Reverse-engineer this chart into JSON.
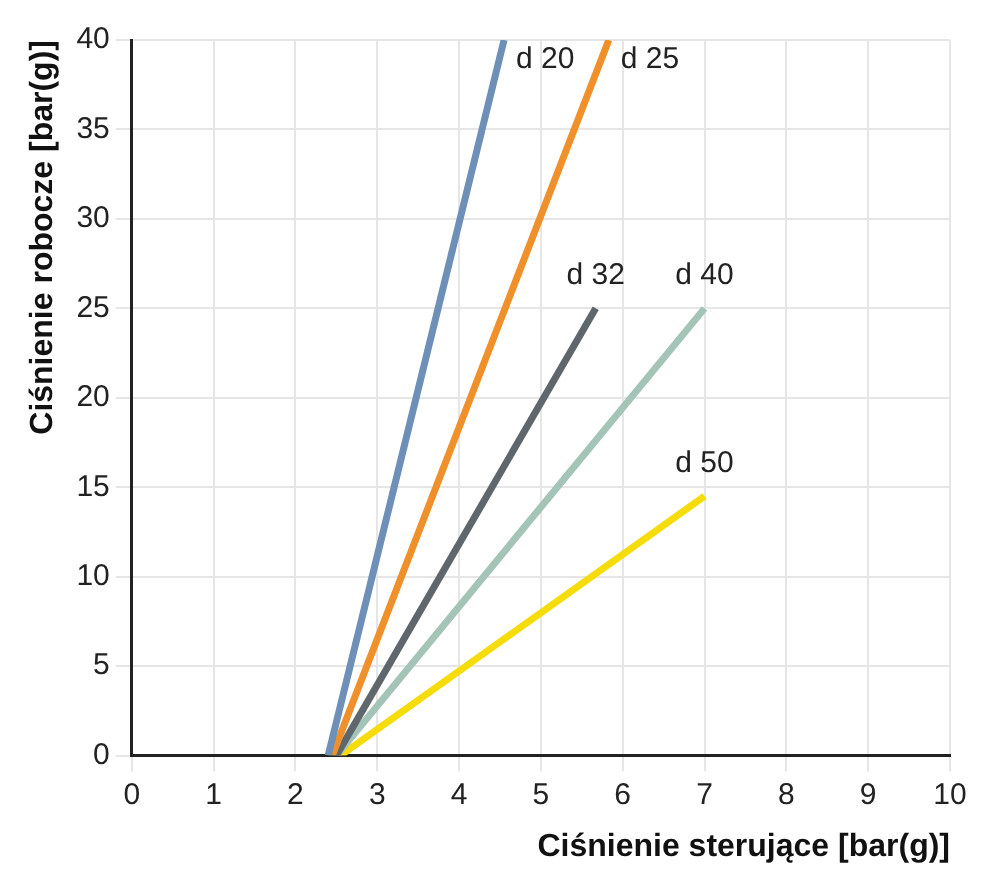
{
  "chart_data": {
    "type": "line",
    "xlabel": "Ciśnienie sterujące [bar(g)]",
    "ylabel": "Ciśnienie robocze [bar(g)]",
    "xlim": [
      0,
      10
    ],
    "xticks": [
      0,
      1,
      2,
      3,
      4,
      5,
      6,
      7,
      8,
      9,
      10
    ],
    "ylim": [
      0,
      40
    ],
    "yticks": [
      0,
      5,
      10,
      15,
      20,
      25,
      30,
      35,
      40
    ],
    "grid": true,
    "legend": false,
    "marker": "none",
    "line_style": "solid",
    "series": [
      {
        "name": "d 20",
        "color": "#6d8fb8",
        "x": [
          2.4,
          4.55
        ],
        "values": [
          0,
          40
        ]
      },
      {
        "name": "d 25",
        "color": "#f0902a",
        "x": [
          2.45,
          5.83
        ],
        "values": [
          0,
          40
        ]
      },
      {
        "name": "d 32",
        "color": "#5f676c",
        "x": [
          2.5,
          5.67
        ],
        "values": [
          0,
          25
        ]
      },
      {
        "name": "d 40",
        "color": "#a3c4b7",
        "x": [
          2.5,
          7
        ],
        "values": [
          0,
          25
        ]
      },
      {
        "name": "d 50",
        "color": "#f5dc0a",
        "x": [
          2.55,
          7
        ],
        "values": [
          0,
          14.5
        ]
      }
    ]
  }
}
